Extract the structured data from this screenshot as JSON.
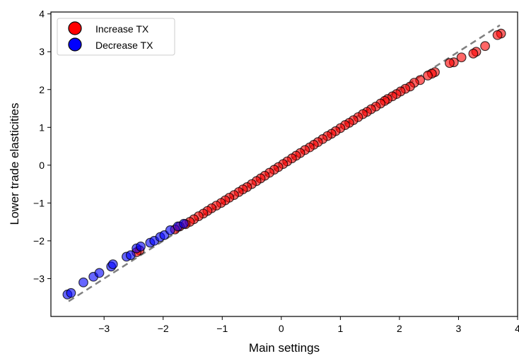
{
  "chart_data": {
    "type": "scatter",
    "title": "",
    "xlabel": "Main settings",
    "ylabel": "Lower trade elasticities",
    "xlim": [
      -3.9,
      4.0
    ],
    "ylim": [
      -4.0,
      4.05
    ],
    "xticks": [
      -3,
      -2,
      -1,
      0,
      1,
      2,
      3,
      4
    ],
    "yticks": [
      -3,
      -2,
      -1,
      0,
      1,
      2,
      3,
      4
    ],
    "xtick_labels": [
      "−3",
      "−2",
      "−1",
      "0",
      "1",
      "2",
      "3",
      "4"
    ],
    "ytick_labels": [
      "−3",
      "−2",
      "−1",
      "0",
      "1",
      "2",
      "3",
      "4"
    ],
    "grid": false,
    "legend_position": "top-left",
    "reference_line": {
      "style": "dashed",
      "color": "#7f7f7f",
      "points": [
        [
          -3.6,
          -3.6
        ],
        [
          3.7,
          3.7
        ]
      ]
    },
    "series": [
      {
        "name": "Increase TX",
        "color": "#ff0000",
        "points": [
          [
            3.72,
            3.48
          ],
          [
            3.66,
            3.44
          ],
          [
            3.45,
            3.15
          ],
          [
            3.3,
            3.0
          ],
          [
            3.25,
            2.95
          ],
          [
            3.05,
            2.85
          ],
          [
            2.92,
            2.72
          ],
          [
            2.85,
            2.7
          ],
          [
            2.6,
            2.46
          ],
          [
            2.55,
            2.42
          ],
          [
            2.48,
            2.37
          ],
          [
            2.35,
            2.25
          ],
          [
            2.25,
            2.18
          ],
          [
            2.18,
            2.08
          ],
          [
            2.1,
            2.02
          ],
          [
            2.02,
            1.95
          ],
          [
            1.95,
            1.88
          ],
          [
            1.88,
            1.82
          ],
          [
            1.8,
            1.75
          ],
          [
            1.75,
            1.7
          ],
          [
            1.68,
            1.63
          ],
          [
            1.6,
            1.55
          ],
          [
            1.52,
            1.48
          ],
          [
            1.45,
            1.41
          ],
          [
            1.38,
            1.35
          ],
          [
            1.3,
            1.27
          ],
          [
            1.22,
            1.19
          ],
          [
            1.15,
            1.12
          ],
          [
            1.08,
            1.06
          ],
          [
            1.0,
            0.98
          ],
          [
            0.92,
            0.9
          ],
          [
            0.85,
            0.83
          ],
          [
            0.78,
            0.77
          ],
          [
            0.7,
            0.69
          ],
          [
            0.62,
            0.61
          ],
          [
            0.55,
            0.54
          ],
          [
            0.48,
            0.47
          ],
          [
            0.4,
            0.4
          ],
          [
            0.32,
            0.32
          ],
          [
            0.25,
            0.25
          ],
          [
            0.18,
            0.18
          ],
          [
            0.1,
            0.1
          ],
          [
            0.03,
            0.03
          ],
          [
            -0.05,
            -0.05
          ],
          [
            -0.12,
            -0.12
          ],
          [
            -0.2,
            -0.2
          ],
          [
            -0.28,
            -0.28
          ],
          [
            -0.35,
            -0.35
          ],
          [
            -0.42,
            -0.42
          ],
          [
            -0.5,
            -0.5
          ],
          [
            -0.58,
            -0.58
          ],
          [
            -0.65,
            -0.64
          ],
          [
            -0.72,
            -0.71
          ],
          [
            -0.8,
            -0.79
          ],
          [
            -0.88,
            -0.86
          ],
          [
            -0.95,
            -0.93
          ],
          [
            -1.02,
            -1.0
          ],
          [
            -1.1,
            -1.07
          ],
          [
            -1.18,
            -1.14
          ],
          [
            -1.25,
            -1.21
          ],
          [
            -1.32,
            -1.28
          ],
          [
            -1.4,
            -1.35
          ],
          [
            -1.48,
            -1.43
          ],
          [
            -1.55,
            -1.5
          ],
          [
            -1.62,
            -1.56
          ],
          [
            -1.72,
            -1.62
          ],
          [
            -1.8,
            -1.7
          ],
          [
            -2.4,
            -2.25
          ],
          [
            -2.45,
            -2.3
          ]
        ]
      },
      {
        "name": "Decrease TX",
        "color": "#0000ff",
        "points": [
          [
            -3.62,
            -3.42
          ],
          [
            -3.56,
            -3.38
          ],
          [
            -3.35,
            -3.1
          ],
          [
            -3.18,
            -2.95
          ],
          [
            -3.08,
            -2.85
          ],
          [
            -2.88,
            -2.68
          ],
          [
            -2.85,
            -2.62
          ],
          [
            -2.62,
            -2.42
          ],
          [
            -2.55,
            -2.38
          ],
          [
            -2.45,
            -2.2
          ],
          [
            -2.38,
            -2.15
          ],
          [
            -2.22,
            -2.05
          ],
          [
            -2.15,
            -2.0
          ],
          [
            -2.05,
            -1.9
          ],
          [
            -1.98,
            -1.85
          ],
          [
            -1.88,
            -1.72
          ],
          [
            -1.75,
            -1.62
          ],
          [
            -1.65,
            -1.55
          ]
        ]
      }
    ]
  }
}
